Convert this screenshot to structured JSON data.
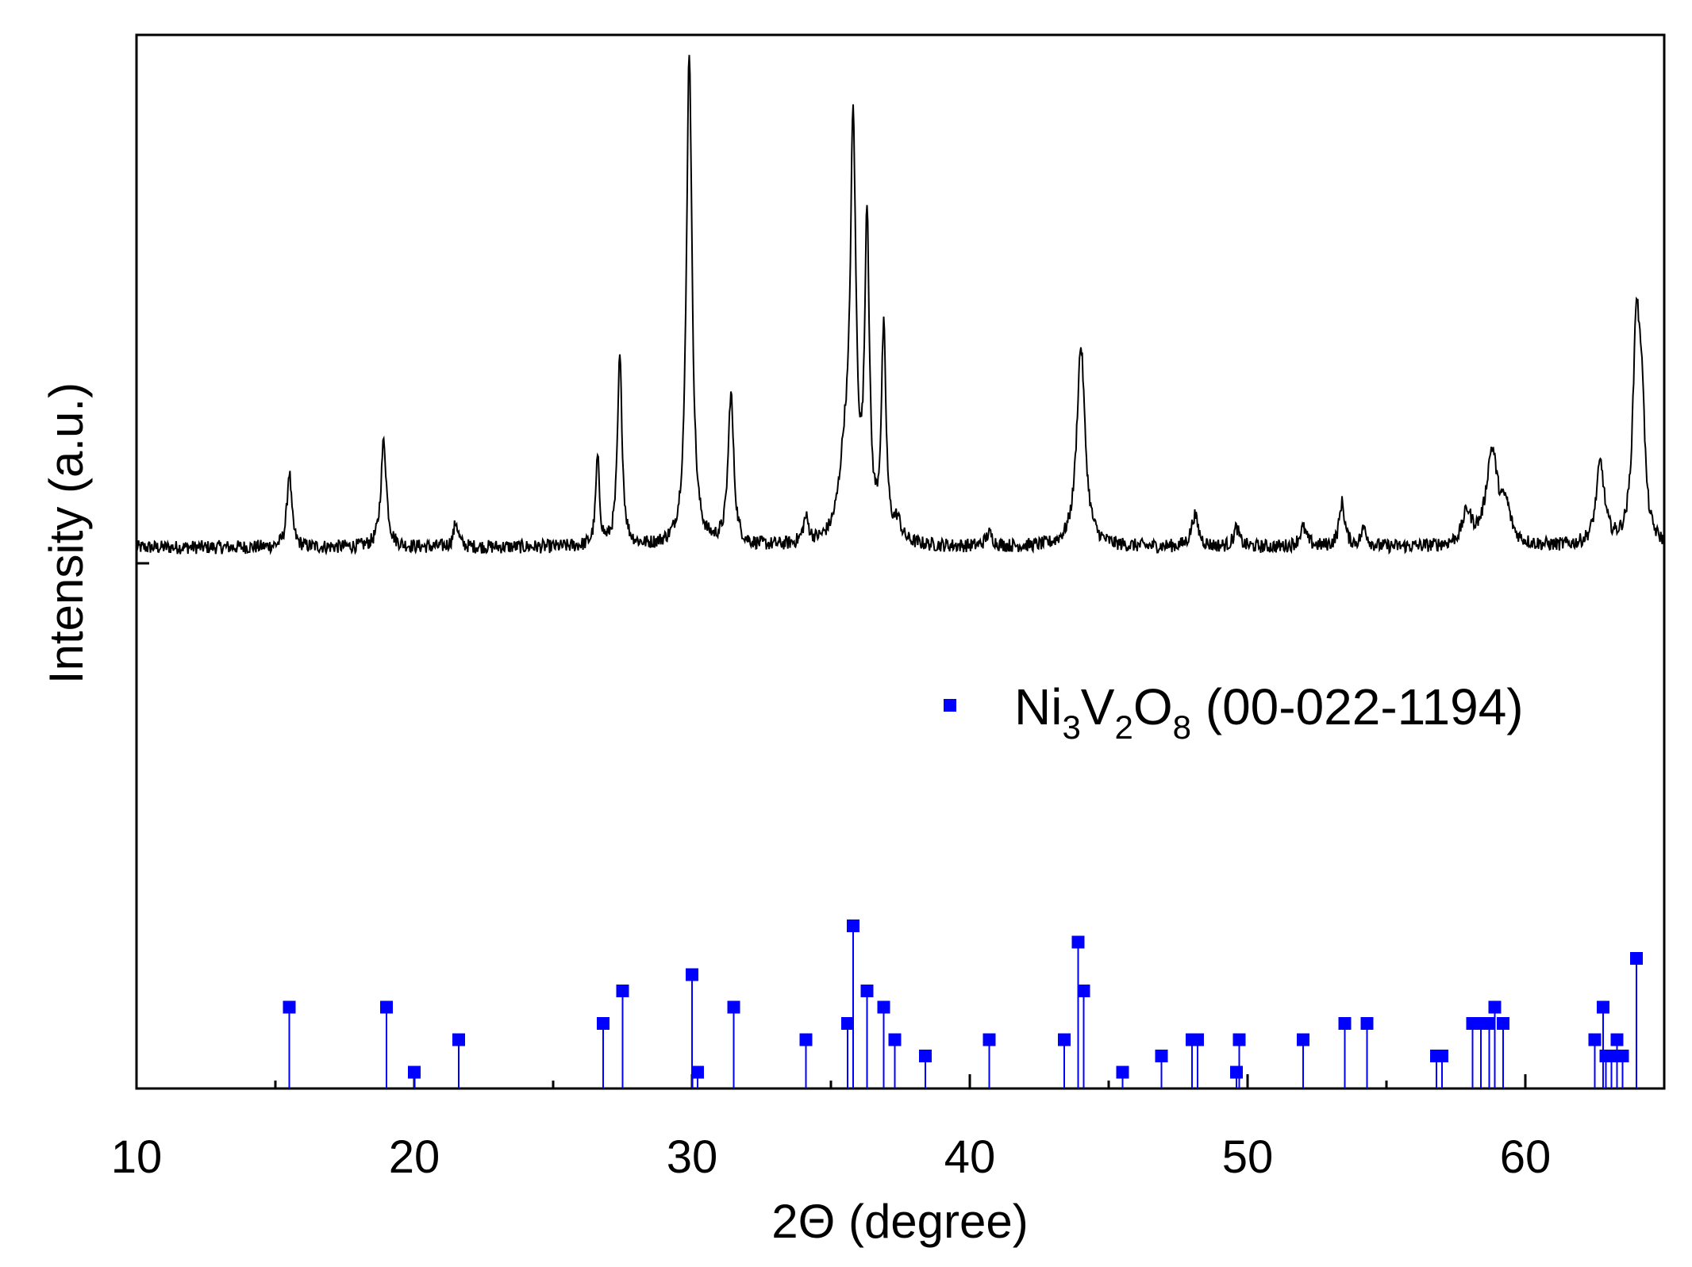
{
  "chart_data": {
    "type": "line",
    "xlabel": "2Θ (degree)",
    "ylabel": "Intensity (a.u.)",
    "xlim": [
      10,
      65
    ],
    "x_ticks": [
      "10",
      "20",
      "30",
      "40",
      "50",
      "60"
    ],
    "grid": false,
    "pattern_color": "#000000",
    "reference_color": "#0000ff",
    "pattern_baseline": 0.1,
    "pattern_peaks": [
      {
        "x": 15.5,
        "height": 0.12,
        "width": 0.1
      },
      {
        "x": 18.9,
        "height": 0.17,
        "width": 0.12
      },
      {
        "x": 21.5,
        "height": 0.04,
        "width": 0.1
      },
      {
        "x": 26.6,
        "height": 0.14,
        "width": 0.08
      },
      {
        "x": 27.4,
        "height": 0.3,
        "width": 0.1
      },
      {
        "x": 29.9,
        "height": 0.79,
        "width": 0.12
      },
      {
        "x": 31.4,
        "height": 0.24,
        "width": 0.12
      },
      {
        "x": 34.1,
        "height": 0.04,
        "width": 0.12
      },
      {
        "x": 35.5,
        "height": 0.12,
        "width": 0.25
      },
      {
        "x": 35.8,
        "height": 0.63,
        "width": 0.12
      },
      {
        "x": 36.3,
        "height": 0.5,
        "width": 0.1
      },
      {
        "x": 36.9,
        "height": 0.33,
        "width": 0.1
      },
      {
        "x": 37.4,
        "height": 0.03,
        "width": 0.15
      },
      {
        "x": 40.7,
        "height": 0.02,
        "width": 0.15
      },
      {
        "x": 44.0,
        "height": 0.32,
        "width": 0.18
      },
      {
        "x": 48.1,
        "height": 0.05,
        "width": 0.15
      },
      {
        "x": 49.6,
        "height": 0.03,
        "width": 0.12
      },
      {
        "x": 52.0,
        "height": 0.03,
        "width": 0.15
      },
      {
        "x": 53.4,
        "height": 0.07,
        "width": 0.12
      },
      {
        "x": 54.2,
        "height": 0.03,
        "width": 0.12
      },
      {
        "x": 57.9,
        "height": 0.05,
        "width": 0.2
      },
      {
        "x": 58.8,
        "height": 0.15,
        "width": 0.25
      },
      {
        "x": 59.3,
        "height": 0.05,
        "width": 0.2
      },
      {
        "x": 62.7,
        "height": 0.13,
        "width": 0.18
      },
      {
        "x": 64.0,
        "height": 0.35,
        "width": 0.15
      },
      {
        "x": 64.2,
        "height": 0.18,
        "width": 0.12
      }
    ],
    "series": [
      {
        "name": "Ni3V2O8 (00-022-1194)",
        "x": [
          15.5,
          19.0,
          20.0,
          21.6,
          26.8,
          27.5,
          30.0,
          30.2,
          31.5,
          34.1,
          35.6,
          35.8,
          36.3,
          36.9,
          37.3,
          38.4,
          40.7,
          43.4,
          43.9,
          44.1,
          45.5,
          46.9,
          48.0,
          48.2,
          49.6,
          49.7,
          52.0,
          53.5,
          54.3,
          56.8,
          57.0,
          58.1,
          58.4,
          58.7,
          58.9,
          59.2,
          62.5,
          62.8,
          62.9,
          63.1,
          63.3,
          63.5,
          64.0
        ],
        "y": [
          5,
          5,
          1,
          3,
          4,
          6,
          7,
          1,
          5,
          3,
          4,
          10,
          6,
          5,
          3,
          2,
          3,
          3,
          9,
          6,
          1,
          2,
          3,
          3,
          1,
          3,
          3,
          4,
          4,
          2,
          2,
          4,
          4,
          4,
          5,
          4,
          3,
          5,
          2,
          2,
          3,
          2,
          8
        ]
      }
    ],
    "legend": {
      "location": "center-right",
      "text_main": [
        "Ni",
        "V",
        "O"
      ],
      "text_subs": [
        "3",
        "2",
        "8"
      ],
      "text_tail": " (00-022-1194)"
    }
  }
}
